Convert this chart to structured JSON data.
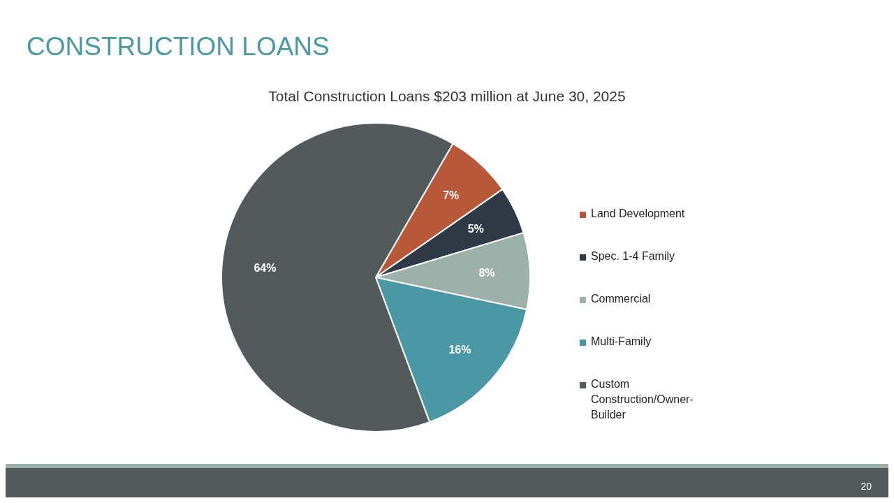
{
  "chart_data": {
    "type": "pie",
    "title": "CONSTRUCTION LOANS",
    "subtitle": "Total Construction Loans $203 million at June 30, 2025",
    "categories": [
      "Land Development",
      "Spec. 1-4 Family",
      "Commercial",
      "Multi-Family",
      "Custom Construction/Owner-Builder"
    ],
    "values": [
      7,
      5,
      8,
      16,
      64
    ],
    "value_labels": [
      "7%",
      "5%",
      "8%",
      "16%",
      "64%"
    ],
    "colors": [
      "#b85838",
      "#2e3b47",
      "#9db0aa",
      "#4a98a3",
      "#525a5c"
    ],
    "legend": "right",
    "annotations": [
      "20"
    ]
  }
}
